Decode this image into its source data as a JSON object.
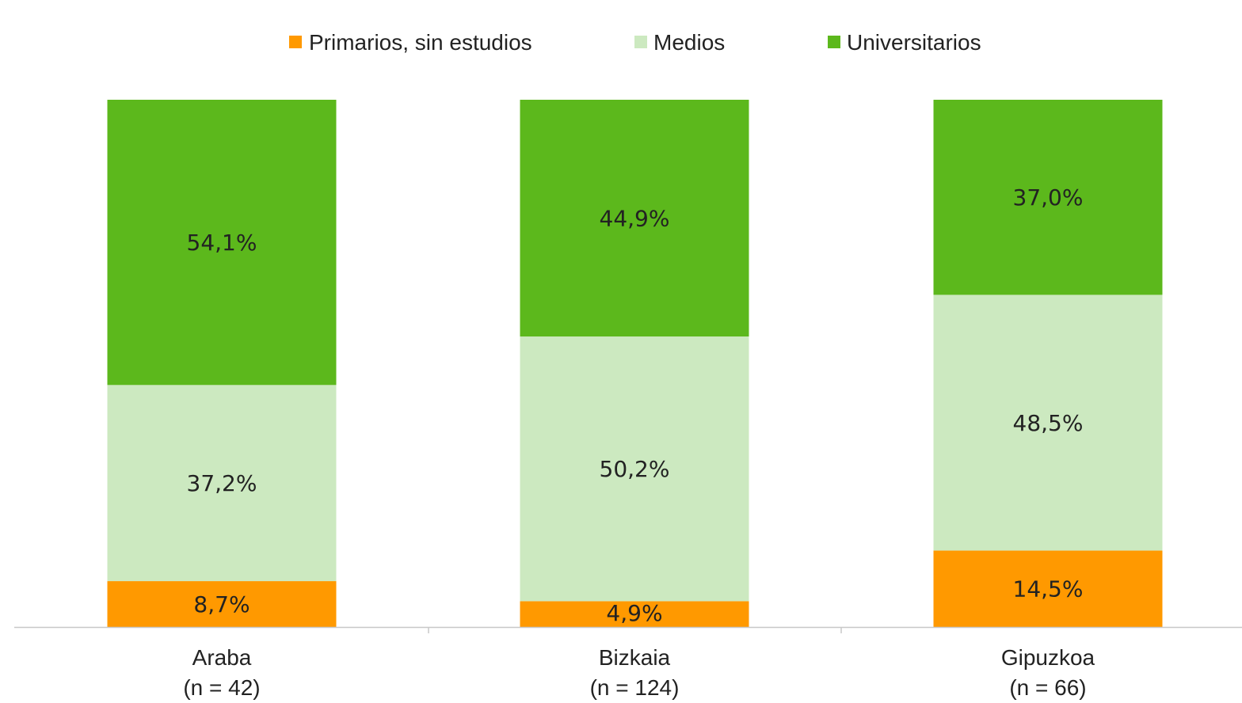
{
  "chart_data": {
    "type": "bar",
    "stacked": true,
    "percent_stacked": true,
    "categories": [
      "Araba",
      "Bizkaia",
      "Gipuzkoa"
    ],
    "category_sublabels": [
      "(n = 42)",
      "(n = 124)",
      "(n = 66)"
    ],
    "series": [
      {
        "name": "Primarios, sin estudios",
        "color": "#ff9900",
        "values": [
          8.7,
          4.9,
          14.5
        ],
        "labels": [
          "8,7%",
          "4,9%",
          "14,5%"
        ]
      },
      {
        "name": "Medios",
        "color": "#cce9c0",
        "values": [
          37.2,
          50.2,
          48.5
        ],
        "labels": [
          "37,2%",
          "50,2%",
          "48,5%"
        ]
      },
      {
        "name": "Universitarios",
        "color": "#5cb81c",
        "values": [
          54.1,
          44.9,
          37.0
        ],
        "labels": [
          "54,1%",
          "44,9%",
          "37,0%"
        ]
      }
    ],
    "ylim": [
      0,
      100
    ],
    "grid": false,
    "legend_position": "top"
  },
  "colors": {
    "axis": "#c8c8c8",
    "text": "#222222"
  }
}
